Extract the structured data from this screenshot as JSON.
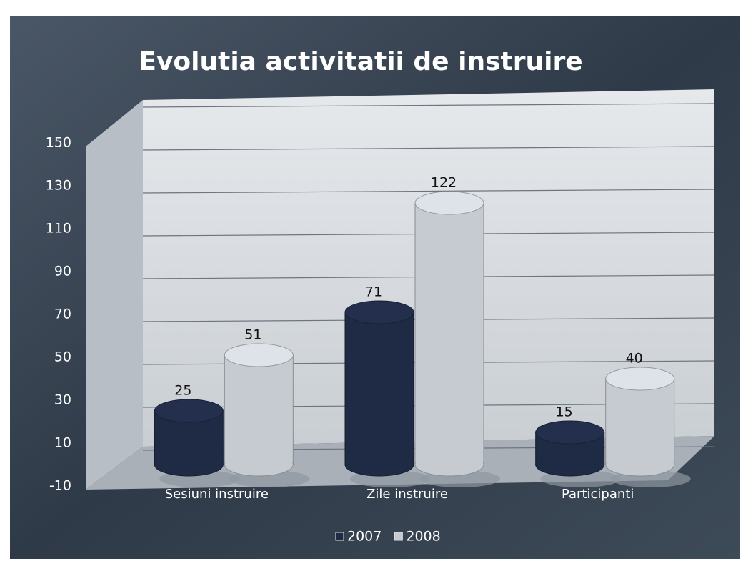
{
  "chart_data": {
    "type": "bar",
    "title": "Evolutia activitatii de instruire",
    "categories": [
      "Sesiuni instruire",
      "Zile instruire",
      "Participanti"
    ],
    "series": [
      {
        "name": "2007",
        "color": "#1f2a44",
        "values": [
          25,
          71,
          15
        ]
      },
      {
        "name": "2008",
        "color": "#c6cbd1",
        "values": [
          51,
          122,
          40
        ]
      }
    ],
    "ylim": [
      -10,
      150
    ],
    "yticks": [
      -10,
      10,
      30,
      50,
      70,
      90,
      110,
      130,
      150
    ],
    "grid": true,
    "legend": "bottom"
  }
}
